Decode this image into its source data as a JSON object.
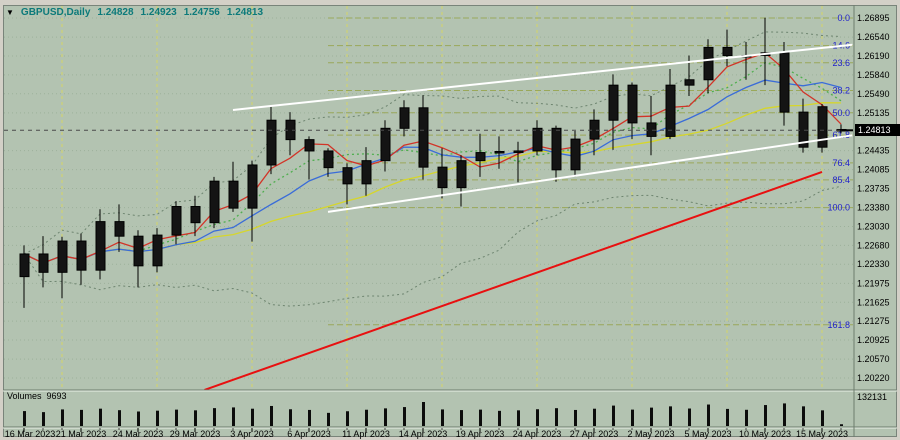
{
  "header": {
    "dropdown_icon": "▼",
    "symbol": "GBPUSD,Daily",
    "open": "1.24828",
    "high": "1.24923",
    "low": "1.24756",
    "close": "1.24813"
  },
  "volumes_panel": {
    "label": "Volumes",
    "value": "9693",
    "scale_max_label": "132131"
  },
  "price_scale": {
    "current_price_label": "1.24813",
    "ticks": [
      "1.26895",
      "1.26540",
      "1.26190",
      "1.25840",
      "1.25490",
      "1.25135",
      "1.24435",
      "1.24085",
      "1.23735",
      "1.23380",
      "1.23030",
      "1.22680",
      "1.22330",
      "1.21975",
      "1.21625",
      "1.21275",
      "1.20925",
      "1.20570",
      "1.20220"
    ]
  },
  "time_axis": {
    "labels": [
      [
        0,
        "16 Mar 2023"
      ],
      [
        3,
        "21 Mar 2023"
      ],
      [
        6,
        "24 Mar 2023"
      ],
      [
        9,
        "29 Mar 2023"
      ],
      [
        12,
        "3 Apr 2023"
      ],
      [
        15,
        "6 Apr 2023"
      ],
      [
        18,
        "11 Apr 2023"
      ],
      [
        21,
        "14 Apr 2023"
      ],
      [
        24,
        "19 Apr 2023"
      ],
      [
        27,
        "24 Apr 2023"
      ],
      [
        30,
        "27 Apr 2023"
      ],
      [
        33,
        "2 May 2023"
      ],
      [
        36,
        "5 May 2023"
      ],
      [
        39,
        "10 May 2023"
      ],
      [
        42,
        "15 May 2023"
      ]
    ]
  },
  "colors": {
    "frame": "#d3d0c7",
    "background": "#b3c3b1",
    "grid": "#9db19b",
    "candle": "#141414",
    "ma_fast": "#d23428",
    "ma_mid": "#3a6cd8",
    "ma_slow": "#d6d62c",
    "ma_dotted": "#4fae4f",
    "bollinger": "#6e8570",
    "fib_line": "#9aa85a",
    "fib_label": "#1e1ecc",
    "week_separator": "#d6d668",
    "trend_white": "#ffffff",
    "trend_red": "#e81010",
    "title": "#0c7a7a"
  },
  "chart_data": {
    "type": "candlestick",
    "symbol": "GBPUSD",
    "timeframe": "Daily",
    "current_price": 1.24813,
    "volume_scale_max": 132131,
    "ylim": [
      1.2022,
      1.26895
    ],
    "candles": [
      [
        "2023-03-16",
        1.221,
        1.2268,
        1.2152,
        1.2252,
        82134
      ],
      [
        "2023-03-17",
        1.2252,
        1.2285,
        1.219,
        1.2218,
        76410
      ],
      [
        "2023-03-20",
        1.2218,
        1.2284,
        1.217,
        1.2276,
        91250
      ],
      [
        "2023-03-21",
        1.2276,
        1.229,
        1.2195,
        1.2222,
        88734
      ],
      [
        "2023-03-22",
        1.2222,
        1.2335,
        1.2205,
        1.2312,
        95412
      ],
      [
        "2023-03-23",
        1.2312,
        1.2344,
        1.2256,
        1.2285,
        87120
      ],
      [
        "2023-03-24",
        1.2285,
        1.2296,
        1.219,
        1.223,
        79850
      ],
      [
        "2023-03-27",
        1.223,
        1.23,
        1.2218,
        1.2287,
        84310
      ],
      [
        "2023-03-28",
        1.2287,
        1.235,
        1.227,
        1.234,
        90125
      ],
      [
        "2023-03-29",
        1.234,
        1.236,
        1.2285,
        1.231,
        86240
      ],
      [
        "2023-03-30",
        1.231,
        1.2395,
        1.23,
        1.2387,
        98430
      ],
      [
        "2023-03-31",
        1.2387,
        1.2423,
        1.233,
        1.2337,
        102314
      ],
      [
        "2023-04-03",
        1.2337,
        1.2425,
        1.2275,
        1.2417,
        95230
      ],
      [
        "2023-04-04",
        1.2417,
        1.2525,
        1.24,
        1.25,
        110245
      ],
      [
        "2023-04-05",
        1.25,
        1.2515,
        1.2435,
        1.2464,
        92130
      ],
      [
        "2023-04-06",
        1.2464,
        1.247,
        1.239,
        1.2443,
        88450
      ],
      [
        "2023-04-07",
        1.2443,
        1.2448,
        1.2395,
        1.2412,
        72340
      ],
      [
        "2023-04-10",
        1.2412,
        1.242,
        1.2344,
        1.2382,
        81230
      ],
      [
        "2023-04-11",
        1.2382,
        1.245,
        1.236,
        1.2425,
        89540
      ],
      [
        "2023-04-12",
        1.2425,
        1.25,
        1.2405,
        1.2485,
        97125
      ],
      [
        "2023-04-13",
        1.2485,
        1.2537,
        1.247,
        1.2523,
        104230
      ],
      [
        "2023-04-14",
        1.2523,
        1.2546,
        1.239,
        1.2413,
        132131
      ],
      [
        "2023-04-17",
        1.2413,
        1.2448,
        1.2355,
        1.2375,
        91240
      ],
      [
        "2023-04-18",
        1.2375,
        1.2435,
        1.234,
        1.2425,
        87630
      ],
      [
        "2023-04-19",
        1.2425,
        1.2475,
        1.2395,
        1.244,
        90110
      ],
      [
        "2023-04-20",
        1.244,
        1.247,
        1.241,
        1.2442,
        83420
      ],
      [
        "2023-04-21",
        1.2442,
        1.246,
        1.2385,
        1.2443,
        86210
      ],
      [
        "2023-04-24",
        1.2443,
        1.25,
        1.2435,
        1.2485,
        92340
      ],
      [
        "2023-04-25",
        1.2485,
        1.249,
        1.2386,
        1.2408,
        98120
      ],
      [
        "2023-04-26",
        1.2408,
        1.248,
        1.2395,
        1.2465,
        88340
      ],
      [
        "2023-04-27",
        1.2465,
        1.252,
        1.2435,
        1.25,
        95210
      ],
      [
        "2023-04-28",
        1.25,
        1.2585,
        1.2445,
        1.2565,
        112340
      ],
      [
        "2023-05-01",
        1.2565,
        1.257,
        1.2465,
        1.2495,
        90230
      ],
      [
        "2023-05-02",
        1.2495,
        1.2545,
        1.2435,
        1.247,
        101240
      ],
      [
        "2023-05-03",
        1.247,
        1.2595,
        1.2465,
        1.2565,
        108120
      ],
      [
        "2023-05-04",
        1.2565,
        1.262,
        1.2545,
        1.2575,
        96240
      ],
      [
        "2023-05-05",
        1.2575,
        1.265,
        1.255,
        1.2635,
        118230
      ],
      [
        "2023-05-08",
        1.2635,
        1.2668,
        1.26,
        1.262,
        94120
      ],
      [
        "2023-05-09",
        1.262,
        1.2645,
        1.2575,
        1.262,
        89230
      ],
      [
        "2023-05-10",
        1.262,
        1.269,
        1.2565,
        1.2625,
        115320
      ],
      [
        "2023-05-11",
        1.2625,
        1.2645,
        1.249,
        1.2515,
        124310
      ],
      [
        "2023-05-12",
        1.2515,
        1.254,
        1.244,
        1.245,
        108240
      ],
      [
        "2023-05-15",
        1.245,
        1.253,
        1.244,
        1.2525,
        86120
      ],
      [
        "2023-05-16",
        1.24828,
        1.24923,
        1.24756,
        1.24813,
        9693
      ]
    ],
    "week_separator_indices": [
      2,
      7,
      12,
      17,
      22,
      27,
      32,
      37,
      42
    ],
    "fibonacci": {
      "levels": [
        [
          "0.0",
          1.26895
        ],
        [
          "14.6",
          1.26382
        ],
        [
          "23.6",
          1.26065
        ],
        [
          "38.2",
          1.25552
        ],
        [
          "50.0",
          1.25138
        ],
        [
          "61.8",
          1.24723
        ],
        [
          "76.4",
          1.2421
        ],
        [
          "85.4",
          1.23893
        ],
        [
          "100.0",
          1.2338
        ],
        [
          "161.8",
          1.21207
        ]
      ]
    },
    "trendlines": [
      {
        "i1": 11,
        "p1": 1.2519,
        "i2": 43.6,
        "p2": 1.264,
        "color_key": "trend_white",
        "width": 2
      },
      {
        "i1": 16,
        "p1": 1.233,
        "i2": 43.6,
        "p2": 1.2472,
        "color_key": "trend_white",
        "width": 2
      },
      {
        "i1": 9.5,
        "p1": 1.2,
        "i2": 42,
        "p2": 1.2404,
        "color_key": "trend_red",
        "width": 2
      }
    ],
    "indicators": [
      {
        "name": "ma-fast",
        "type": "sma",
        "period": 4,
        "color_key": "ma_fast",
        "style": "solid"
      },
      {
        "name": "ma-mid",
        "type": "sma",
        "period": 9,
        "color_key": "ma_mid",
        "style": "solid"
      },
      {
        "name": "ma-slow",
        "type": "sma",
        "period": 16,
        "color_key": "ma_slow",
        "style": "solid"
      },
      {
        "name": "ma-dotted",
        "type": "sma",
        "period": 6,
        "color_key": "ma_dotted",
        "style": "dotted"
      },
      {
        "name": "bollinger-bands",
        "type": "bollinger",
        "period": 20,
        "deviation": 2,
        "color_key": "bollinger",
        "style": "dotted"
      }
    ]
  }
}
